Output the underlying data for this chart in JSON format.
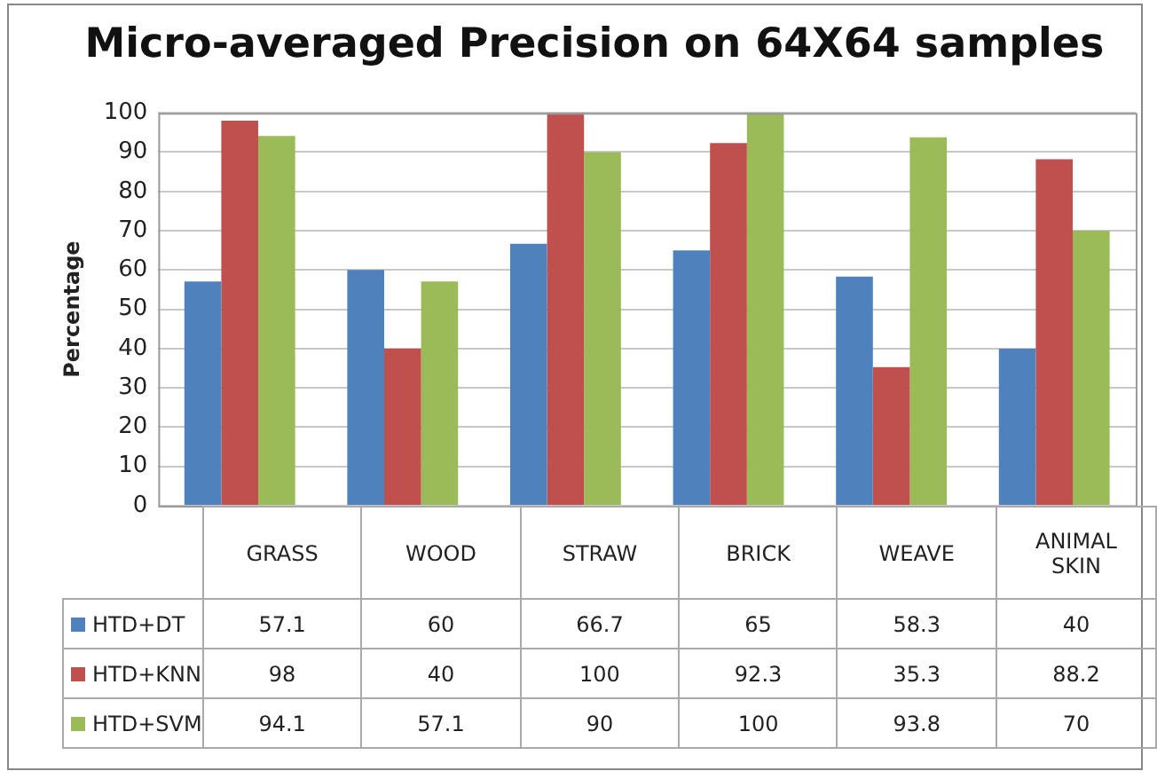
{
  "chart_data": {
    "type": "bar",
    "title": "Micro-averaged Precision on 64X64 samples",
    "ylabel": "Percentage",
    "categories": [
      "GRASS",
      "WOOD",
      "STRAW",
      "BRICK",
      "WEAVE",
      "ANIMAL SKIN"
    ],
    "series": [
      {
        "name": "HTD+DT",
        "color": "#4f81bd",
        "values": [
          57.1,
          60,
          66.7,
          65,
          58.3,
          40
        ]
      },
      {
        "name": "HTD+KNN",
        "color": "#c0504d",
        "values": [
          98,
          40,
          100,
          92.3,
          35.3,
          88.2
        ]
      },
      {
        "name": "HTD+SVM",
        "color": "#9bbb59",
        "values": [
          94.1,
          57.1,
          90,
          100,
          93.8,
          70
        ]
      }
    ],
    "ylim": [
      0,
      100
    ],
    "yticks": [
      0,
      10,
      20,
      30,
      40,
      50,
      60,
      70,
      80,
      90,
      100
    ],
    "grid": "y",
    "legend": "bottom",
    "data_labels": true
  }
}
